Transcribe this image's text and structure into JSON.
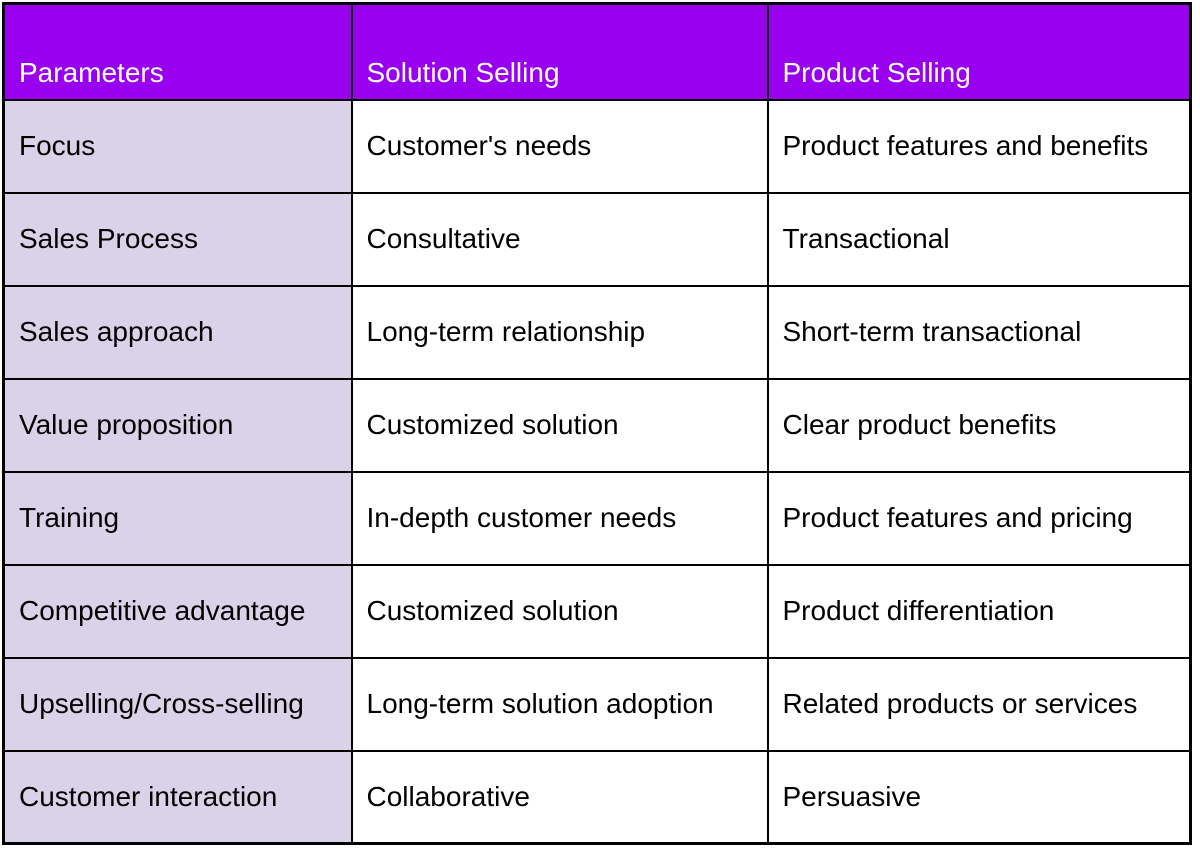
{
  "colors": {
    "header_bg": "#9900f0",
    "header_text": "#ffffff",
    "param_column_bg": "#d9d2e9",
    "cell_bg": "#ffffff",
    "border": "#000000",
    "body_text": "#000000"
  },
  "table": {
    "columns": [
      "Parameters",
      "Solution Selling",
      "Product Selling"
    ],
    "rows": [
      {
        "parameter": "Focus",
        "solution_selling": "Customer's needs",
        "product_selling": "Product features and benefits"
      },
      {
        "parameter": "Sales Process",
        "solution_selling": "Consultative",
        "product_selling": "Transactional"
      },
      {
        "parameter": "Sales approach",
        "solution_selling": "Long-term relationship",
        "product_selling": "Short-term transactional"
      },
      {
        "parameter": "Value proposition",
        "solution_selling": "Customized solution",
        "product_selling": "Clear product benefits"
      },
      {
        "parameter": "Training",
        "solution_selling": "In-depth customer needs",
        "product_selling": "Product features and pricing"
      },
      {
        "parameter": "Competitive advantage",
        "solution_selling": "Customized solution",
        "product_selling": "Product differentiation"
      },
      {
        "parameter": "Upselling/Cross-selling",
        "solution_selling": "Long-term solution adoption",
        "product_selling": "Related products or services"
      },
      {
        "parameter": "Customer interaction",
        "solution_selling": "Collaborative",
        "product_selling": "Persuasive"
      }
    ]
  }
}
